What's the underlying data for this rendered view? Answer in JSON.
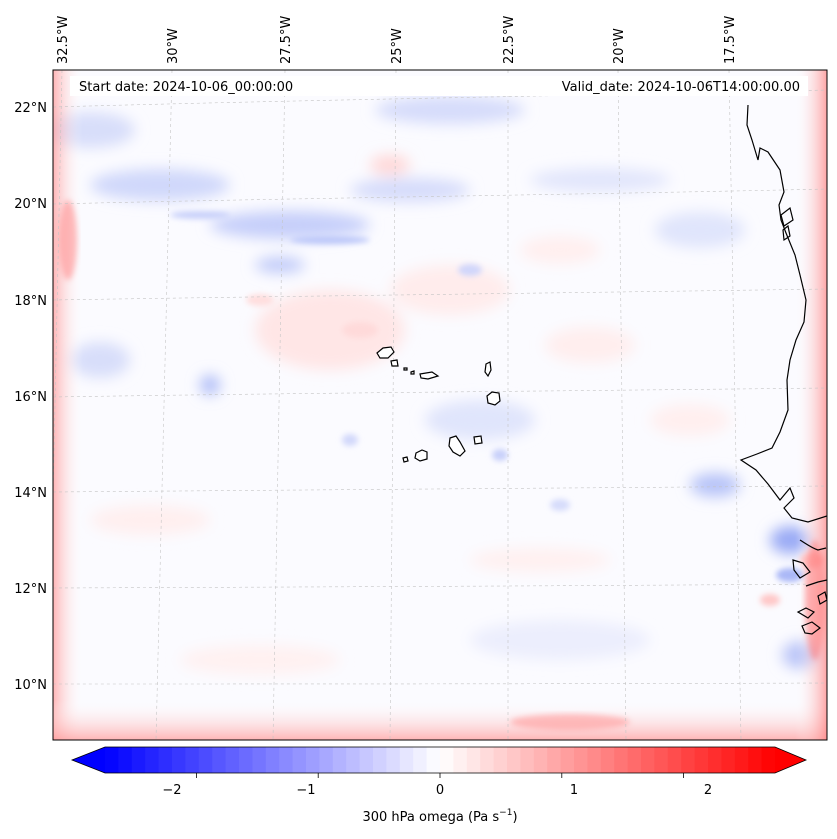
{
  "header": {
    "start_date": "Start date: 2024-10-06_00:00:00",
    "valid_date": "Valid_date: 2024-10-06T14:00:00.00"
  },
  "axes": {
    "lon_labels": [
      "32.5°W",
      "30°W",
      "27.5°W",
      "25°W",
      "22.5°W",
      "20°W",
      "17.5°W"
    ],
    "lat_labels": [
      "22°N",
      "20°N",
      "18°N",
      "16°N",
      "14°N",
      "12°N",
      "10°N"
    ]
  },
  "colorbar": {
    "label": "300 hPa omega (Pa s",
    "label_exponent": "−1",
    "label_close": ")",
    "tick_labels": [
      "−2",
      "−1",
      "0",
      "1",
      "2"
    ],
    "tick_values": [
      -2,
      -1,
      0,
      1,
      2
    ],
    "range": [
      -2.75,
      2.75
    ]
  },
  "colors": {
    "negative": "#0000ff",
    "zero": "#ffffff",
    "positive": "#ff0000",
    "coastline": "#000000",
    "grid": "#b8b8b8"
  }
}
